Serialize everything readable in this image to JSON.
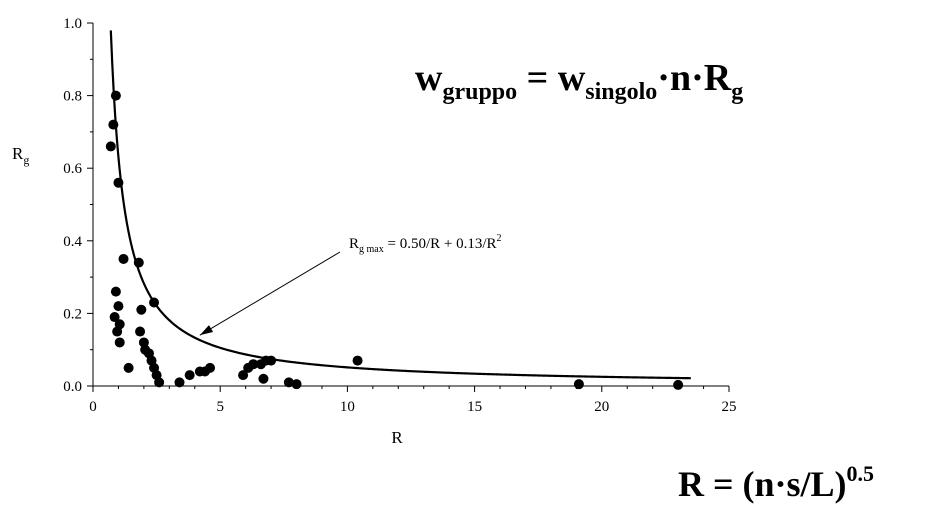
{
  "chart_data": {
    "type": "scatter",
    "title": "",
    "xlabel": "R",
    "ylabel_main": "R",
    "ylabel_sub": "g",
    "xlim": [
      0,
      25
    ],
    "ylim": [
      0,
      1.0
    ],
    "x_ticks": [
      {
        "value": 0,
        "label": "0"
      },
      {
        "value": 5,
        "label": "5"
      },
      {
        "value": 10,
        "label": "10"
      },
      {
        "value": 15,
        "label": "15"
      },
      {
        "value": 20,
        "label": "20"
      },
      {
        "value": 25,
        "label": "25"
      }
    ],
    "y_ticks": [
      {
        "value": 0,
        "label": "0.0"
      },
      {
        "value": 0.2,
        "label": "0.2"
      },
      {
        "value": 0.4,
        "label": "0.4"
      },
      {
        "value": 0.6,
        "label": "0.6"
      },
      {
        "value": 0.8,
        "label": "0.8"
      },
      {
        "value": 1.0,
        "label": "1.0"
      }
    ],
    "grid": false,
    "points": [
      {
        "x": 0.7,
        "y": 0.66
      },
      {
        "x": 0.8,
        "y": 0.72
      },
      {
        "x": 0.9,
        "y": 0.8
      },
      {
        "x": 1.0,
        "y": 0.56
      },
      {
        "x": 1.2,
        "y": 0.35
      },
      {
        "x": 0.85,
        "y": 0.19
      },
      {
        "x": 0.9,
        "y": 0.26
      },
      {
        "x": 1.0,
        "y": 0.22
      },
      {
        "x": 1.05,
        "y": 0.17
      },
      {
        "x": 0.95,
        "y": 0.15
      },
      {
        "x": 1.05,
        "y": 0.12
      },
      {
        "x": 1.4,
        "y": 0.05
      },
      {
        "x": 1.8,
        "y": 0.34
      },
      {
        "x": 1.9,
        "y": 0.21
      },
      {
        "x": 1.85,
        "y": 0.15
      },
      {
        "x": 2.0,
        "y": 0.12
      },
      {
        "x": 2.05,
        "y": 0.1
      },
      {
        "x": 2.2,
        "y": 0.09
      },
      {
        "x": 2.3,
        "y": 0.07
      },
      {
        "x": 2.4,
        "y": 0.05
      },
      {
        "x": 2.5,
        "y": 0.03
      },
      {
        "x": 2.6,
        "y": 0.01
      },
      {
        "x": 2.4,
        "y": 0.23
      },
      {
        "x": 3.4,
        "y": 0.01
      },
      {
        "x": 3.8,
        "y": 0.03
      },
      {
        "x": 4.2,
        "y": 0.04
      },
      {
        "x": 4.4,
        "y": 0.04
      },
      {
        "x": 4.6,
        "y": 0.05
      },
      {
        "x": 5.9,
        "y": 0.03
      },
      {
        "x": 6.1,
        "y": 0.05
      },
      {
        "x": 6.3,
        "y": 0.06
      },
      {
        "x": 6.6,
        "y": 0.06
      },
      {
        "x": 6.8,
        "y": 0.07
      },
      {
        "x": 7.0,
        "y": 0.07
      },
      {
        "x": 6.7,
        "y": 0.02
      },
      {
        "x": 7.7,
        "y": 0.01
      },
      {
        "x": 8.0,
        "y": 0.005
      },
      {
        "x": 10.4,
        "y": 0.07
      },
      {
        "x": 19.1,
        "y": 0.005
      },
      {
        "x": 23.0,
        "y": 0.003
      }
    ],
    "curve": {
      "coef_a": 0.5,
      "coef_b": 0.13,
      "x_start": 0.7,
      "x_end": 23.5
    },
    "annotation": {
      "label_main": "R",
      "label_sub": "g max",
      "label_rest": " = 0.50/R + 0.13/R",
      "label_sup": "2",
      "arrow_tip": {
        "x": 4.2,
        "y": 0.14
      }
    }
  },
  "formula_top": {
    "w1": "w",
    "sub1": "gruppo",
    "eq": " = ",
    "w2": "w",
    "sub2": "singolo",
    "rest": "·n·R",
    "sub3": "g"
  },
  "formula_bottom": {
    "text": "R = (n·s/L)",
    "sup": "0.5"
  }
}
